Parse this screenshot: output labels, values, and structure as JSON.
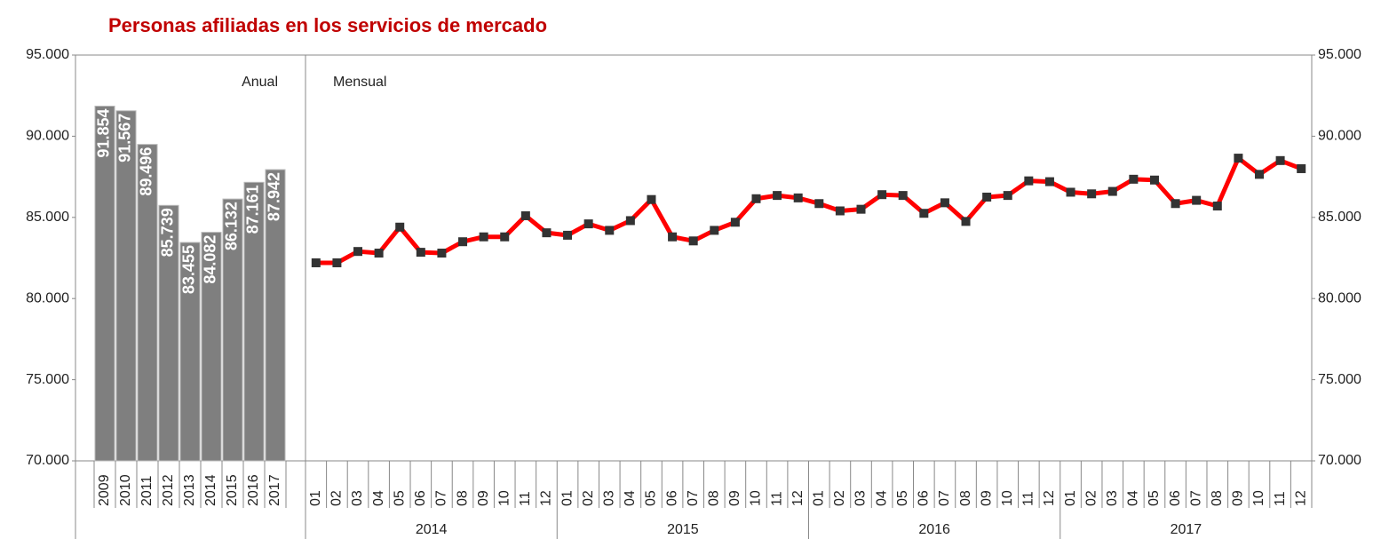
{
  "chart_data": [
    {
      "type": "bar",
      "title": "Personas afiliadas en los servicios de mercado",
      "annotation": "Anual",
      "categories": [
        "2009",
        "2010",
        "2011",
        "2012",
        "2013",
        "2014",
        "2015",
        "2016",
        "2017"
      ],
      "values": [
        91854,
        91567,
        89496,
        85739,
        83455,
        84082,
        86132,
        87161,
        87942
      ],
      "value_labels": [
        "91.854",
        "91.567",
        "89.496",
        "85.739",
        "83.455",
        "84.082",
        "86.132",
        "87.161",
        "87.942"
      ],
      "color": "#7f7f7f",
      "ylim": [
        70000,
        95000
      ],
      "yticks": [
        {
          "value": 70000,
          "label": "70.000"
        },
        {
          "value": 75000,
          "label": "75.000"
        },
        {
          "value": 80000,
          "label": "80.000"
        },
        {
          "value": 85000,
          "label": "85.000"
        },
        {
          "value": 90000,
          "label": "90.000"
        },
        {
          "value": 95000,
          "label": "95.000"
        }
      ]
    },
    {
      "type": "line",
      "annotation": "Mensual",
      "categories": [
        "01",
        "02",
        "03",
        "04",
        "05",
        "06",
        "07",
        "08",
        "09",
        "10",
        "11",
        "12",
        "01",
        "02",
        "03",
        "04",
        "05",
        "06",
        "07",
        "08",
        "09",
        "10",
        "11",
        "12",
        "01",
        "02",
        "03",
        "04",
        "05",
        "06",
        "07",
        "08",
        "09",
        "10",
        "11",
        "12",
        "01",
        "02",
        "03",
        "04",
        "05",
        "06",
        "07",
        "08",
        "09",
        "10",
        "11",
        "12"
      ],
      "groups": [
        "2014",
        "2015",
        "2016",
        "2017"
      ],
      "values": [
        82200,
        82200,
        82900,
        82800,
        84400,
        82850,
        82800,
        83500,
        83800,
        83800,
        85100,
        84050,
        83900,
        84600,
        84200,
        84800,
        86100,
        83800,
        83550,
        84200,
        84700,
        86150,
        86350,
        86200,
        85850,
        85400,
        85500,
        86400,
        86350,
        85250,
        85900,
        84750,
        86250,
        86350,
        87250,
        87200,
        86550,
        86450,
        86600,
        87350,
        87300,
        85850,
        86050,
        85700,
        88650,
        87650,
        88500,
        88000
      ],
      "color": "#ff0000",
      "marker_color": "#333333",
      "ylim": [
        70000,
        95000
      ],
      "yticks": [
        {
          "value": 70000,
          "label": "70.000"
        },
        {
          "value": 75000,
          "label": "75.000"
        },
        {
          "value": 80000,
          "label": "80.000"
        },
        {
          "value": 85000,
          "label": "85.000"
        },
        {
          "value": 90000,
          "label": "90.000"
        },
        {
          "value": 95000,
          "label": "95.000"
        }
      ]
    }
  ]
}
